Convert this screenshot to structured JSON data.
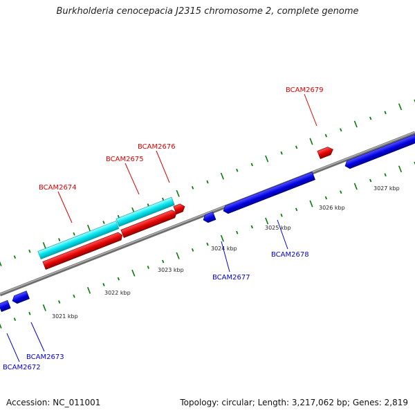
{
  "title": "Burkholderia cenocepacia J2315 chromosome 2, complete genome",
  "footer": {
    "accession": "Accession: NC_011001",
    "summary": "Topology: circular; Length: 3,217,062 bp; Genes: 2,819"
  },
  "colors": {
    "backbone": "#8a8a8a",
    "forward_gene": "#ee0000",
    "reverse_gene": "#0000ee",
    "highlight": "#00e0e8",
    "tick": "#0a7a0a",
    "forward_label": "#dd0000",
    "reverse_label": "#0000dd"
  },
  "scale_labels": [
    "3021 kbp",
    "3022 kbp",
    "3023 kbp",
    "3024 kbp",
    "3025 kbp",
    "3026 kbp",
    "3027 kbp"
  ],
  "genes": [
    {
      "name": "BCAM2672",
      "strand": "reverse"
    },
    {
      "name": "BCAM2673",
      "strand": "reverse"
    },
    {
      "name": "BCAM2674",
      "strand": "forward"
    },
    {
      "name": "BCAM2675",
      "strand": "forward"
    },
    {
      "name": "BCAM2676",
      "strand": "forward"
    },
    {
      "name": "BCAM2677",
      "strand": "reverse"
    },
    {
      "name": "BCAM2678",
      "strand": "reverse"
    },
    {
      "name": "BCAM2679",
      "strand": "forward"
    }
  ]
}
